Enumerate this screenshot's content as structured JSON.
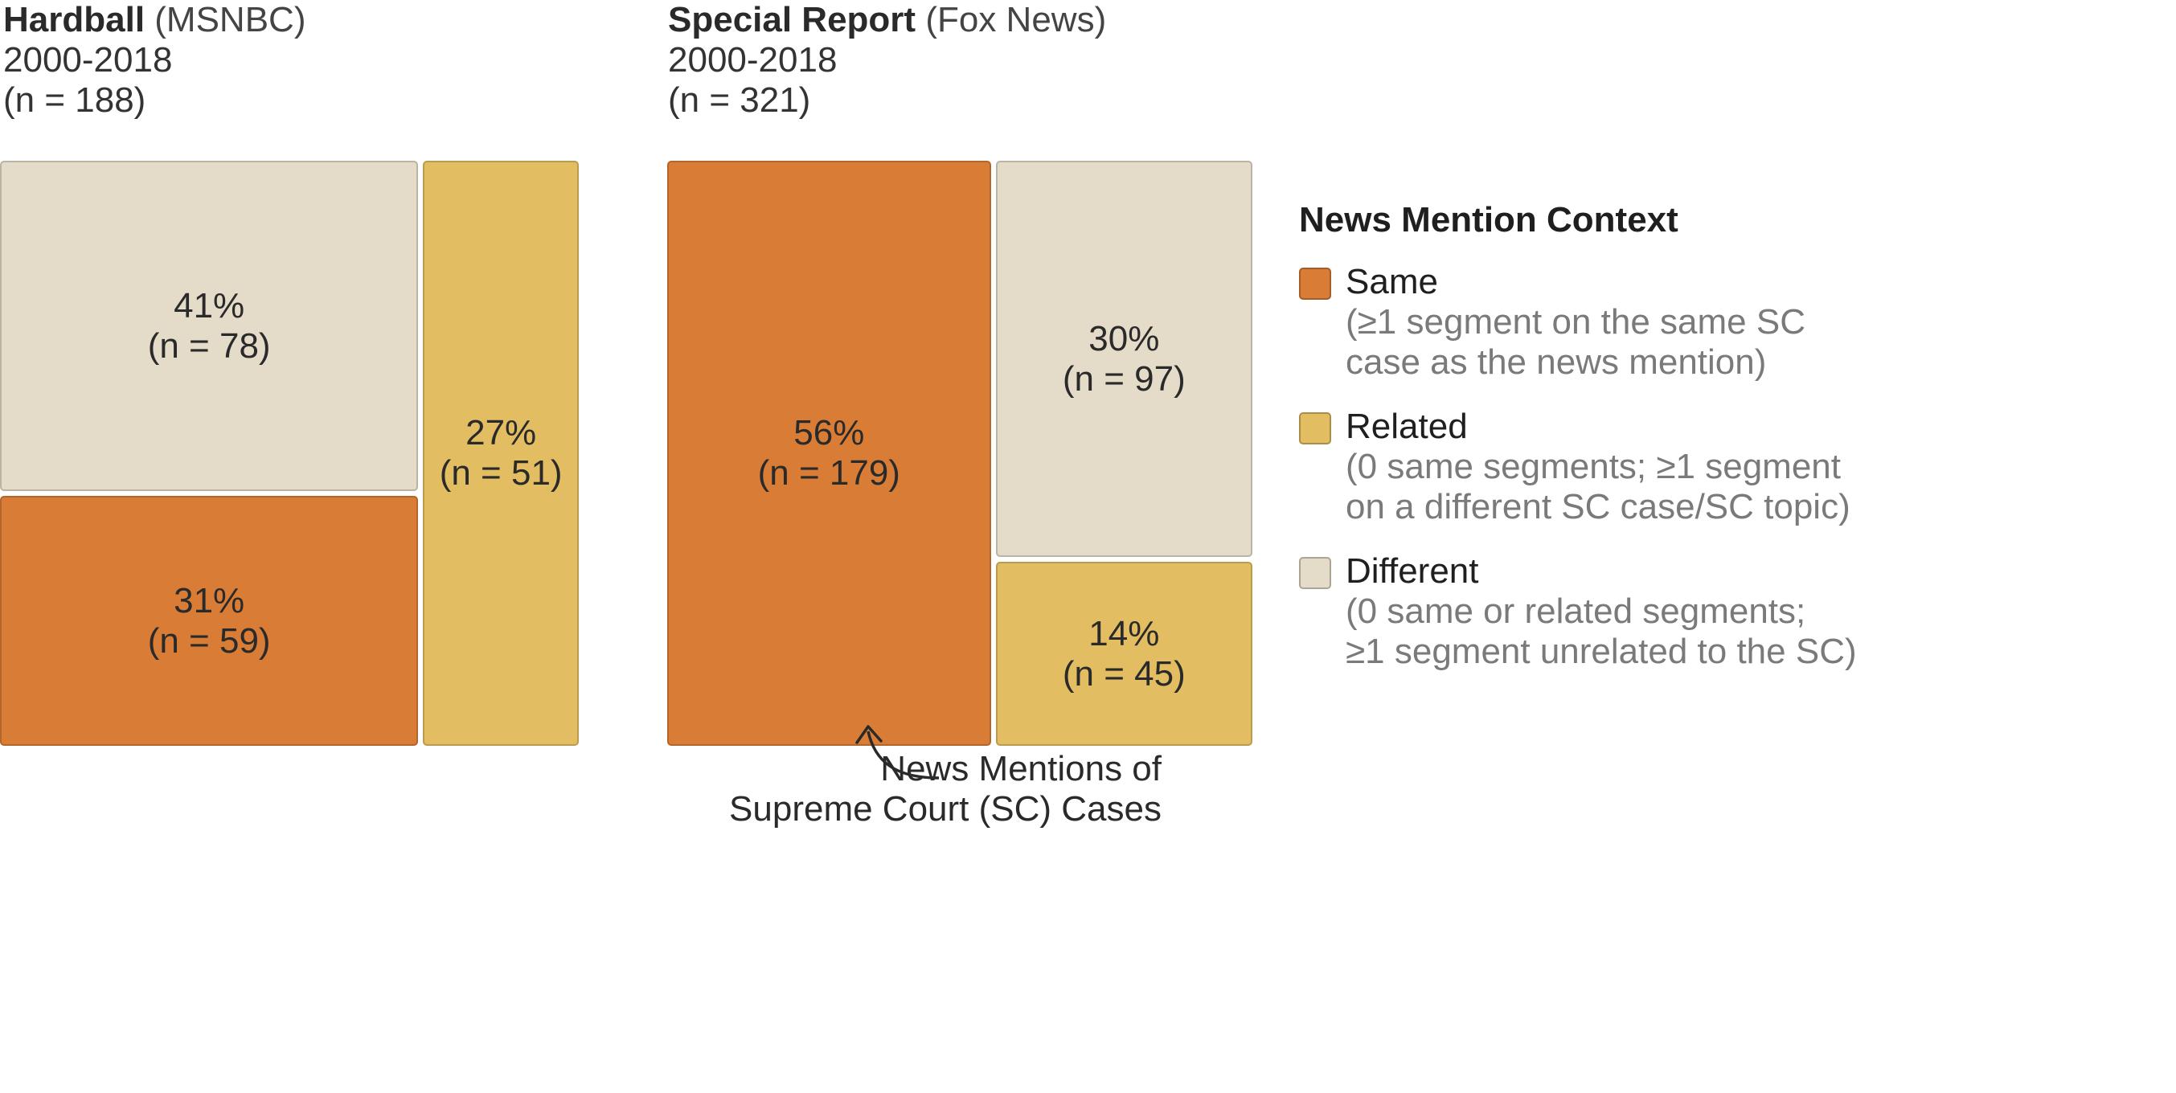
{
  "chart_data": [
    {
      "type": "treemap",
      "title_show": "Hardball",
      "title_network": "(MSNBC)",
      "years": "2000-2018",
      "total": "(n = 188)",
      "cells": [
        {
          "category": "Different",
          "percent_label": "41%",
          "count_label": "(n = 78)",
          "percent": 41,
          "n": 78
        },
        {
          "category": "Same",
          "percent_label": "31%",
          "count_label": "(n = 59)",
          "percent": 31,
          "n": 59
        },
        {
          "category": "Related",
          "percent_label": "27%",
          "count_label": "(n = 51)",
          "percent": 27,
          "n": 51
        }
      ]
    },
    {
      "type": "treemap",
      "title_show": "Special Report",
      "title_network": "(Fox News)",
      "years": "2000-2018",
      "total": "(n = 321)",
      "cells": [
        {
          "category": "Same",
          "percent_label": "56%",
          "count_label": "(n = 179)",
          "percent": 56,
          "n": 179
        },
        {
          "category": "Different",
          "percent_label": "30%",
          "count_label": "(n = 97)",
          "percent": 30,
          "n": 97
        },
        {
          "category": "Related",
          "percent_label": "14%",
          "count_label": "(n = 45)",
          "percent": 14,
          "n": 45
        }
      ]
    }
  ],
  "annotation": {
    "line1": "News Mentions of",
    "line2": "Supreme Court (SC) Cases"
  },
  "legend": {
    "title": "News Mention Context",
    "items": [
      {
        "label": "Same",
        "desc1": "(≥1 segment on the same SC",
        "desc2": "case as the news mention)"
      },
      {
        "label": "Related",
        "desc1": "(0 same segments; ≥1 segment",
        "desc2": "on a different SC case/SC topic)"
      },
      {
        "label": "Different",
        "desc1": "(0 same or related segments;",
        "desc2": "≥1 segment unrelated to the SC)"
      }
    ]
  },
  "colors": {
    "Same": "#d97d36",
    "Related": "#e3bd62",
    "Different": "#e4dcc8"
  }
}
